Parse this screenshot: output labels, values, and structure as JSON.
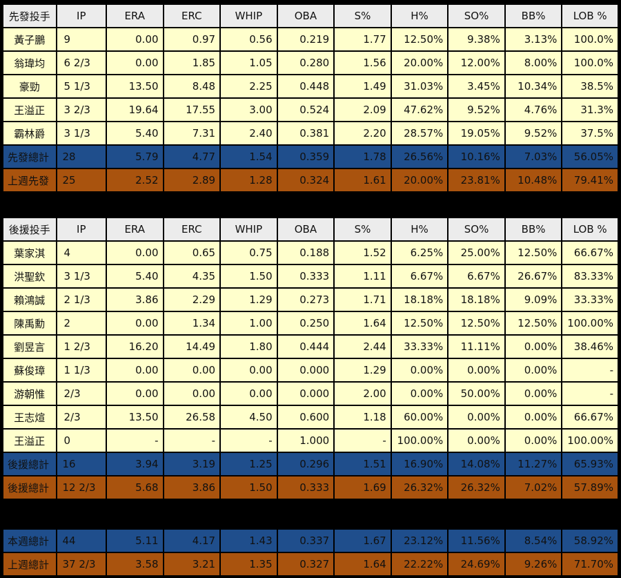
{
  "columns": [
    "IP",
    "ERA",
    "ERC",
    "WHIP",
    "OBA",
    "S%",
    "H%",
    "SO%",
    "BB%",
    "LOB %"
  ],
  "starters": {
    "header": "先發投手",
    "rows": [
      {
        "name": "黃子鵬",
        "v": [
          "9",
          "0.00",
          "0.97",
          "0.56",
          "0.219",
          "1.77",
          "12.50%",
          "9.38%",
          "3.13%",
          "100.0%"
        ]
      },
      {
        "name": "翁瑋均",
        "v": [
          "6 2/3",
          "0.00",
          "1.85",
          "1.05",
          "0.280",
          "1.56",
          "20.00%",
          "12.00%",
          "8.00%",
          "100.0%"
        ]
      },
      {
        "name": "豪勁",
        "v": [
          "5 1/3",
          "13.50",
          "8.48",
          "2.25",
          "0.448",
          "1.49",
          "31.03%",
          "3.45%",
          "10.34%",
          "38.5%"
        ]
      },
      {
        "name": "王溢正",
        "v": [
          "3 2/3",
          "19.64",
          "17.55",
          "3.00",
          "0.524",
          "2.09",
          "47.62%",
          "9.52%",
          "4.76%",
          "31.3%"
        ]
      },
      {
        "name": "霸林爵",
        "v": [
          "3 1/3",
          "5.40",
          "7.31",
          "2.40",
          "0.381",
          "2.20",
          "28.57%",
          "19.05%",
          "9.52%",
          "37.5%"
        ]
      }
    ],
    "total": {
      "name": "先發總計",
      "v": [
        "28",
        "5.79",
        "4.77",
        "1.54",
        "0.359",
        "1.78",
        "26.56%",
        "10.16%",
        "7.03%",
        "56.05%"
      ]
    },
    "last_week": {
      "name": "上週先發",
      "v": [
        "25",
        "2.52",
        "2.89",
        "1.28",
        "0.324",
        "1.61",
        "20.00%",
        "23.81%",
        "10.48%",
        "79.41%"
      ]
    }
  },
  "relievers": {
    "header": "後援投手",
    "rows": [
      {
        "name": "葉家淇",
        "v": [
          "4",
          "0.00",
          "0.65",
          "0.75",
          "0.188",
          "1.52",
          "6.25%",
          "25.00%",
          "12.50%",
          "66.67%"
        ]
      },
      {
        "name": "洪聖欽",
        "v": [
          "3 1/3",
          "5.40",
          "4.35",
          "1.50",
          "0.333",
          "1.11",
          "6.67%",
          "6.67%",
          "26.67%",
          "83.33%"
        ]
      },
      {
        "name": "賴鴻誠",
        "v": [
          "2 1/3",
          "3.86",
          "2.29",
          "1.29",
          "0.273",
          "1.71",
          "18.18%",
          "18.18%",
          "9.09%",
          "33.33%"
        ]
      },
      {
        "name": "陳禹勳",
        "v": [
          "2",
          "0.00",
          "1.34",
          "1.00",
          "0.250",
          "1.64",
          "12.50%",
          "12.50%",
          "12.50%",
          "100.00%"
        ]
      },
      {
        "name": "劉昱言",
        "v": [
          "1 2/3",
          "16.20",
          "14.49",
          "1.80",
          "0.444",
          "2.44",
          "33.33%",
          "11.11%",
          "0.00%",
          "38.46%"
        ]
      },
      {
        "name": "蘇俊璋",
        "v": [
          "1 1/3",
          "0.00",
          "0.00",
          "0.00",
          "0.000",
          "1.29",
          "0.00%",
          "0.00%",
          "0.00%",
          "-"
        ]
      },
      {
        "name": "游朝惟",
        "v": [
          "2/3",
          "0.00",
          "0.00",
          "0.00",
          "0.000",
          "2.00",
          "0.00%",
          "50.00%",
          "0.00%",
          "-"
        ]
      },
      {
        "name": "王志煊",
        "v": [
          "2/3",
          "13.50",
          "26.58",
          "4.50",
          "0.600",
          "1.18",
          "60.00%",
          "0.00%",
          "0.00%",
          "66.67%"
        ]
      },
      {
        "name": "王溢正",
        "v": [
          "0",
          "-",
          "-",
          "-",
          "1.000",
          "-",
          "100.00%",
          "0.00%",
          "0.00%",
          "100.00%"
        ]
      }
    ],
    "total": {
      "name": "後援總計",
      "v": [
        "16",
        "3.94",
        "3.19",
        "1.25",
        "0.296",
        "1.51",
        "16.90%",
        "14.08%",
        "11.27%",
        "65.93%"
      ]
    },
    "last_week": {
      "name": "後援總計",
      "v": [
        "12 2/3",
        "5.68",
        "3.86",
        "1.50",
        "0.333",
        "1.69",
        "26.32%",
        "26.32%",
        "7.02%",
        "57.89%"
      ]
    }
  },
  "overall": {
    "this_week": {
      "name": "本週總計",
      "v": [
        "44",
        "5.11",
        "4.17",
        "1.43",
        "0.337",
        "1.67",
        "23.12%",
        "11.56%",
        "8.54%",
        "58.92%"
      ]
    },
    "last_week": {
      "name": "上週總計",
      "v": [
        "37 2/3",
        "3.58",
        "3.21",
        "1.35",
        "0.327",
        "1.64",
        "22.22%",
        "24.69%",
        "9.26%",
        "71.70%"
      ]
    }
  },
  "colors": {
    "row_bg": "#ffffcc",
    "header_bg": "#ececec",
    "total_blue": "#1f4e8c",
    "total_orange": "#a9530e",
    "page_bg": "#000000"
  }
}
